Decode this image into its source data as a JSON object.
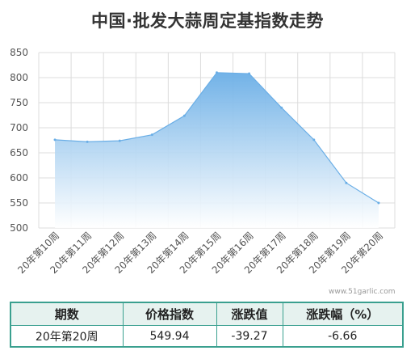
{
  "title": "中国·批发大蒜周定基指数走势",
  "watermark": "www.51garlic.com",
  "colors": {
    "line": "#6aaee6",
    "fill_top": "#6aaee6",
    "fill_bottom": "#ffffff",
    "grid": "#dcdcdc",
    "table_border": "#3aa08f",
    "table_header_bg": "#e6f2ef"
  },
  "chart_data": {
    "type": "area",
    "title": "中国·批发大蒜周定基指数走势",
    "categories": [
      "20年第10周",
      "20年第11周",
      "20年第12周",
      "20年第13周",
      "20年第14周",
      "20年第15周",
      "20年第16周",
      "20年第17周",
      "20年第18周",
      "20年第19周",
      "20年第20周"
    ],
    "series": [
      {
        "values": [
          676,
          672,
          674,
          686,
          724,
          810,
          808,
          740,
          676,
          590,
          549.94
        ]
      }
    ],
    "ylim": [
      500,
      850
    ],
    "yticks": [
      "850",
      "800",
      "750",
      "700",
      "650",
      "600",
      "550",
      "500"
    ],
    "grid": true,
    "legend": "none"
  },
  "table": {
    "headers": [
      "期数",
      "价格指数",
      "涨跌值",
      "涨跌幅（%）"
    ],
    "row": [
      "20年第20周",
      "549.94",
      "-39.27",
      "-6.66"
    ]
  }
}
